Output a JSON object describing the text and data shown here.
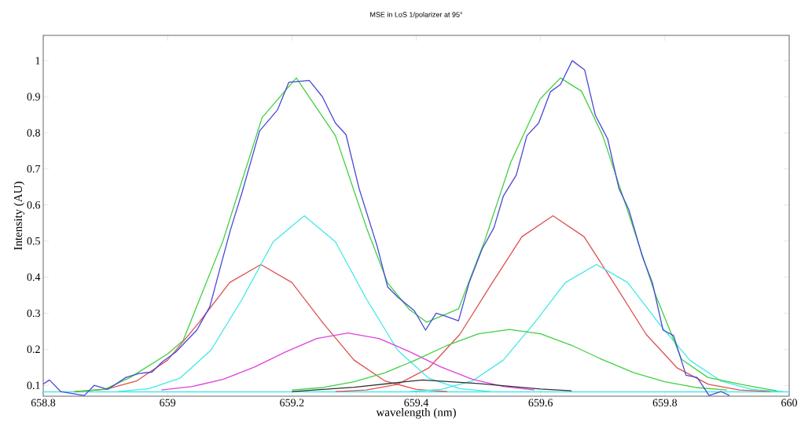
{
  "chart_data": {
    "type": "line",
    "title": "MSE in LoS 1/polarizer at 95°",
    "xlabel": "wavelength (nm)",
    "ylabel": "Intensity (AU)",
    "xlim": [
      658.8,
      660
    ],
    "ylim": [
      0.07,
      1.07
    ],
    "xticks": [
      658.8,
      659,
      659.2,
      659.4,
      659.6,
      659.8,
      660
    ],
    "yticks": [
      0.1,
      0.2,
      0.3,
      0.4,
      0.5,
      0.6,
      0.7,
      0.8,
      0.9,
      1
    ],
    "grid": false,
    "marker": "none",
    "line_style": "solid",
    "series": [
      {
        "color": "#40e8e8",
        "x": [
          658.8,
          660
        ],
        "values": [
          0.082,
          0.082
        ]
      },
      {
        "color": "#e05050",
        "x": [
          658.85,
          658.9,
          658.95,
          659.0,
          659.05,
          659.1,
          659.15,
          659.2,
          659.25,
          659.3,
          659.35,
          659.4,
          659.45
        ],
        "values": [
          0.083,
          0.089,
          0.112,
          0.17,
          0.273,
          0.385,
          0.435,
          0.385,
          0.273,
          0.17,
          0.112,
          0.089,
          0.083
        ]
      },
      {
        "color": "#e05050",
        "x": [
          659.27,
          659.32,
          659.37,
          659.42,
          659.47,
          659.52,
          659.57,
          659.62,
          659.67,
          659.72,
          659.77,
          659.82,
          659.87,
          659.92,
          659.97
        ],
        "values": [
          0.083,
          0.087,
          0.103,
          0.148,
          0.241,
          0.378,
          0.512,
          0.57,
          0.512,
          0.378,
          0.241,
          0.148,
          0.103,
          0.087,
          0.083
        ]
      },
      {
        "color": "#40e8e8",
        "x": [
          658.92,
          658.97,
          659.02,
          659.07,
          659.12,
          659.17,
          659.22,
          659.27,
          659.32,
          659.37,
          659.42,
          659.47,
          659.52
        ],
        "values": [
          0.083,
          0.091,
          0.12,
          0.198,
          0.339,
          0.498,
          0.57,
          0.498,
          0.339,
          0.198,
          0.12,
          0.091,
          0.083
        ]
      },
      {
        "color": "#40e8e8",
        "x": [
          659.39,
          659.44,
          659.49,
          659.54,
          659.59,
          659.64,
          659.69,
          659.74,
          659.79,
          659.84,
          659.89,
          659.94,
          659.99
        ],
        "values": [
          0.083,
          0.089,
          0.112,
          0.17,
          0.273,
          0.385,
          0.435,
          0.385,
          0.273,
          0.17,
          0.112,
          0.089,
          0.083
        ]
      },
      {
        "color": "#e040e0",
        "x": [
          658.99,
          659.04,
          659.09,
          659.14,
          659.19,
          659.24,
          659.29,
          659.34,
          659.39,
          659.44,
          659.49,
          659.54,
          659.59
        ],
        "values": [
          0.087,
          0.097,
          0.117,
          0.151,
          0.193,
          0.23,
          0.245,
          0.23,
          0.193,
          0.151,
          0.117,
          0.097,
          0.087
        ]
      },
      {
        "color": "#40d040",
        "x": [
          659.2,
          659.25,
          659.3,
          659.35,
          659.4,
          659.45,
          659.5,
          659.55,
          659.6,
          659.65,
          659.7,
          659.75,
          659.8,
          659.85,
          659.9
        ],
        "values": [
          0.087,
          0.094,
          0.11,
          0.135,
          0.171,
          0.211,
          0.243,
          0.255,
          0.243,
          0.211,
          0.171,
          0.135,
          0.11,
          0.094,
          0.087
        ]
      },
      {
        "color": "#303030",
        "x": [
          659.2,
          659.3,
          659.41,
          659.5,
          659.6,
          659.65
        ],
        "values": [
          0.083,
          0.095,
          0.115,
          0.105,
          0.09,
          0.085
        ]
      },
      {
        "color": "#40d040",
        "x": [
          658.85,
          658.9,
          658.94,
          659.0,
          659.025,
          659.089,
          659.152,
          659.207,
          659.27,
          659.32,
          659.354,
          659.388,
          659.417,
          659.468,
          659.51,
          659.552,
          659.599,
          659.632,
          659.666,
          659.7,
          659.742,
          659.784,
          659.827,
          659.869,
          659.93,
          659.98
        ],
        "values": [
          0.082,
          0.09,
          0.122,
          0.187,
          0.224,
          0.5,
          0.842,
          0.952,
          0.792,
          0.537,
          0.384,
          0.312,
          0.275,
          0.312,
          0.5,
          0.718,
          0.893,
          0.952,
          0.915,
          0.792,
          0.574,
          0.355,
          0.172,
          0.122,
          0.1,
          0.085
        ]
      },
      {
        "color": "#4848d8",
        "x": [
          658.8,
          658.81,
          658.828,
          658.866,
          658.882,
          658.904,
          658.933,
          658.954,
          658.975,
          658.992,
          659.013,
          659.047,
          659.068,
          659.085,
          659.101,
          659.119,
          659.148,
          659.177,
          659.195,
          659.228,
          659.249,
          659.27,
          659.287,
          659.308,
          659.337,
          659.354,
          659.37,
          659.397,
          659.415,
          659.432,
          659.447,
          659.468,
          659.485,
          659.506,
          659.525,
          659.54,
          659.561,
          659.578,
          659.597,
          659.616,
          659.632,
          659.651,
          659.671,
          659.688,
          659.708,
          659.726,
          659.742,
          659.764,
          659.78,
          659.797,
          659.814,
          659.834,
          659.852,
          659.871,
          659.89,
          659.904
        ],
        "values": [
          0.104,
          0.115,
          0.083,
          0.072,
          0.1,
          0.089,
          0.122,
          0.133,
          0.137,
          0.166,
          0.192,
          0.253,
          0.318,
          0.428,
          0.53,
          0.63,
          0.805,
          0.864,
          0.94,
          0.945,
          0.9,
          0.827,
          0.795,
          0.646,
          0.487,
          0.373,
          0.345,
          0.307,
          0.253,
          0.3,
          0.292,
          0.279,
          0.384,
          0.478,
          0.537,
          0.624,
          0.683,
          0.792,
          0.827,
          0.914,
          0.934,
          1.0,
          0.974,
          0.849,
          0.783,
          0.646,
          0.587,
          0.456,
          0.384,
          0.253,
          0.238,
          0.128,
          0.122,
          0.072,
          0.083,
          0.072
        ]
      }
    ]
  }
}
